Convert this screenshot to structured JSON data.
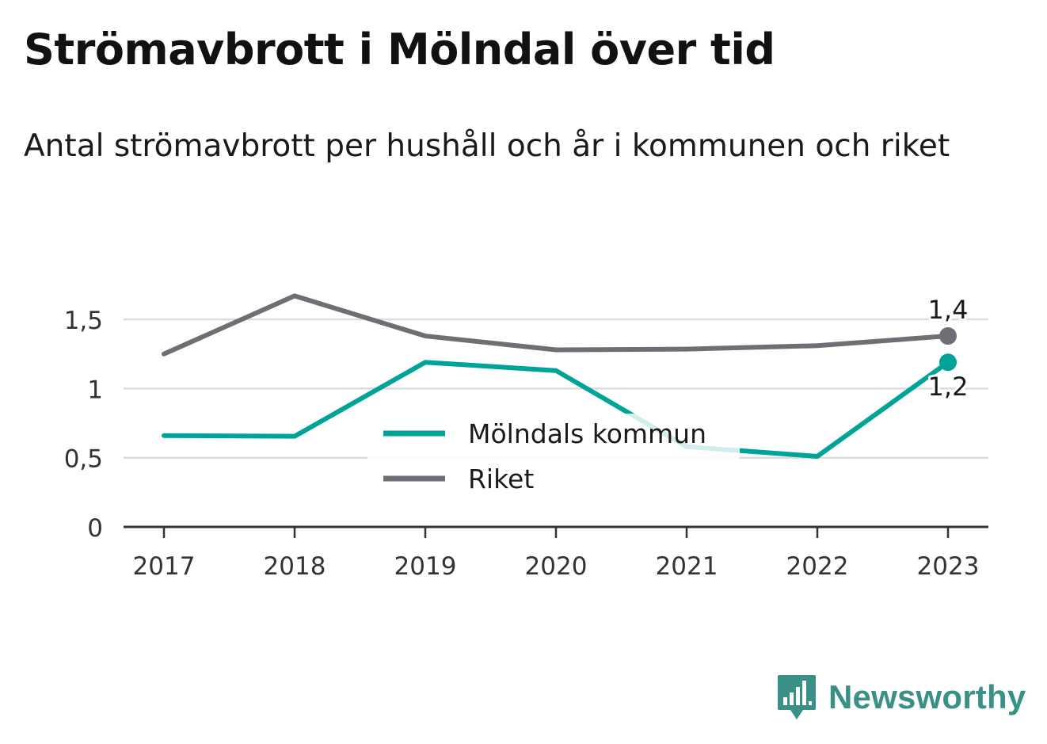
{
  "chart_data": {
    "type": "line",
    "title": "Strömavbrott i Mölndal över tid",
    "subtitle": "Antal strömavbrott per hushåll och år i kommunen och riket",
    "categories": [
      "2017",
      "2018",
      "2019",
      "2020",
      "2021",
      "2022",
      "2023"
    ],
    "series": [
      {
        "name": "Mölndals kommun",
        "color": "#00a398",
        "values": [
          0.66,
          0.655,
          1.19,
          1.13,
          0.58,
          0.51,
          1.19
        ],
        "end_label": "1,2"
      },
      {
        "name": "Riket",
        "color": "#6e6e75",
        "values": [
          1.25,
          1.67,
          1.38,
          1.28,
          1.285,
          1.31,
          1.38
        ],
        "end_label": "1,4"
      }
    ],
    "y_ticks": [
      {
        "value": 0,
        "label": "0"
      },
      {
        "value": 0.5,
        "label": "0,5"
      },
      {
        "value": 1,
        "label": "1"
      },
      {
        "value": 1.5,
        "label": "1,5"
      }
    ],
    "ylim": [
      0,
      1.5
    ],
    "grid": true,
    "legend_position": "center-bottom"
  },
  "branding": {
    "name": "Newsworthy",
    "logo_icon": "bar-chart-speech-bubble-icon",
    "color": "#3a8f86"
  }
}
